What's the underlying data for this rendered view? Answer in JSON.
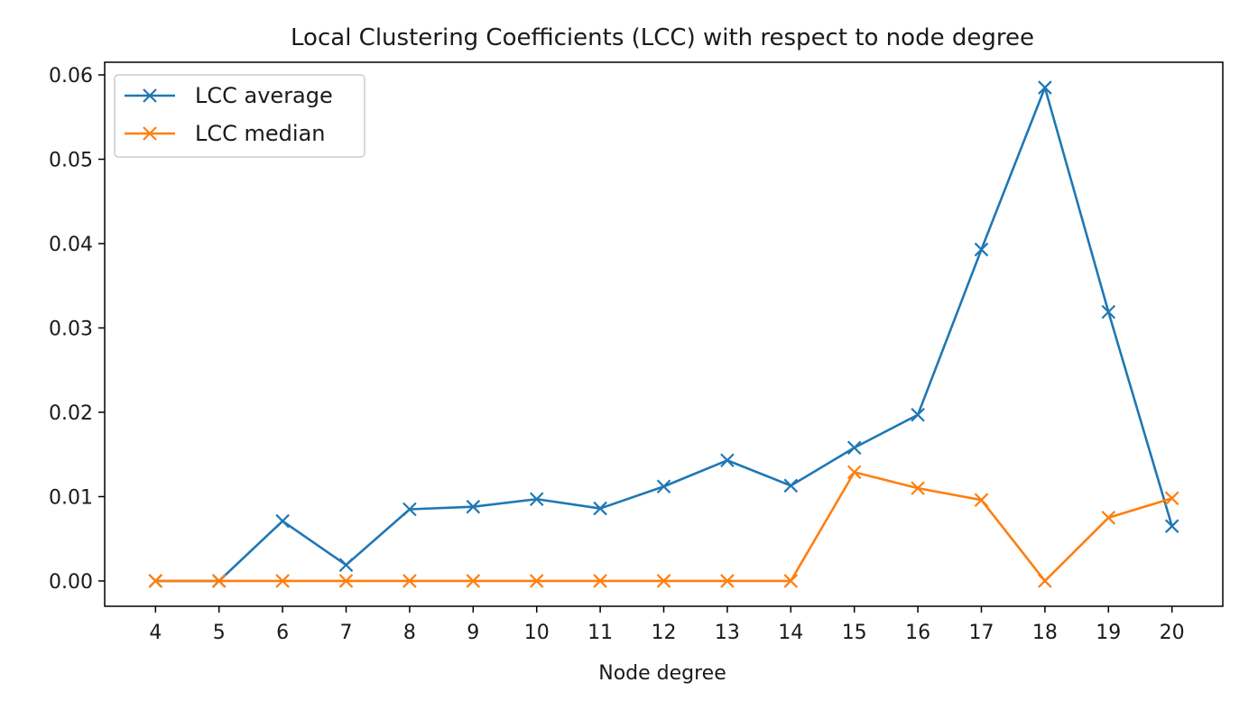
{
  "chart_data": {
    "type": "line",
    "title": "Local Clustering Coefficients (LCC) with respect to node degree",
    "xlabel": "Node degree",
    "ylabel": "",
    "x": [
      4,
      5,
      6,
      7,
      8,
      9,
      10,
      11,
      12,
      13,
      14,
      15,
      16,
      17,
      18,
      19,
      20
    ],
    "x_tick_labels": [
      "4",
      "5",
      "6",
      "7",
      "8",
      "9",
      "10",
      "11",
      "12",
      "13",
      "14",
      "15",
      "16",
      "17",
      "18",
      "19",
      "20"
    ],
    "y_ticks": [
      0.0,
      0.01,
      0.02,
      0.03,
      0.04,
      0.05,
      0.06
    ],
    "y_tick_labels": [
      "0.00",
      "0.01",
      "0.02",
      "0.03",
      "0.04",
      "0.05",
      "0.06"
    ],
    "xlim": [
      3.2,
      20.8
    ],
    "ylim": [
      -0.003,
      0.0615
    ],
    "grid": false,
    "legend_position": "top-left",
    "marker": "x",
    "series": [
      {
        "name": "LCC average",
        "color": "#1f77b4",
        "values": [
          0.0,
          0.0,
          0.0071,
          0.0019,
          0.0085,
          0.0088,
          0.0097,
          0.0086,
          0.0112,
          0.0143,
          0.0113,
          0.0158,
          0.0197,
          0.0393,
          0.0585,
          0.0319,
          0.0065
        ]
      },
      {
        "name": "LCC median",
        "color": "#ff7f0e",
        "values": [
          0.0,
          0.0,
          0.0,
          0.0,
          0.0,
          0.0,
          0.0,
          0.0,
          0.0,
          0.0,
          0.0,
          0.0129,
          0.011,
          0.0096,
          0.0,
          0.0075,
          0.0098
        ]
      }
    ]
  }
}
